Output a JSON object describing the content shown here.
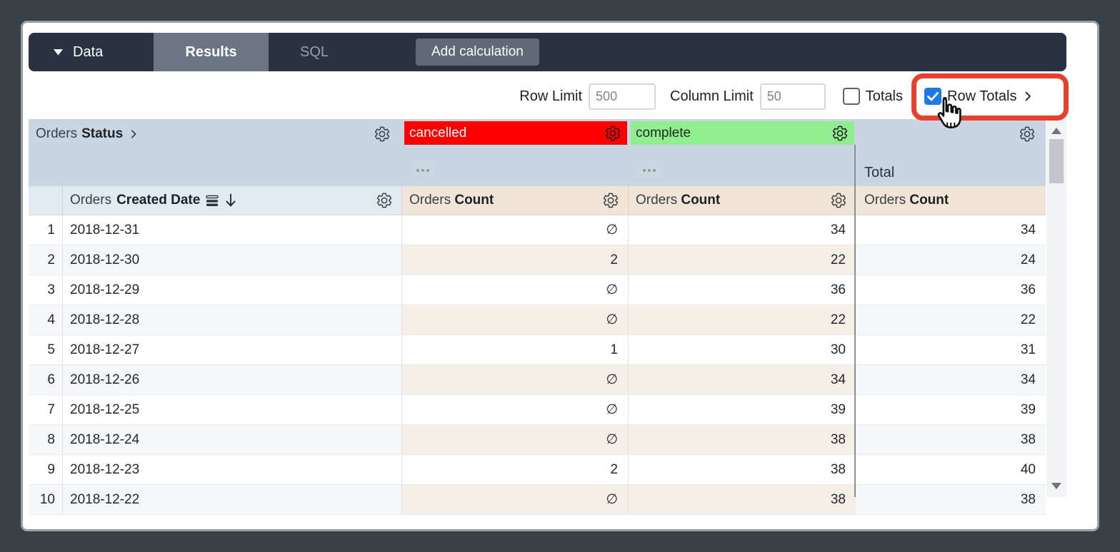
{
  "toolbar": {
    "data_label": "Data",
    "tabs": [
      {
        "label": "Results",
        "active": true
      },
      {
        "label": "SQL",
        "active": false
      }
    ],
    "add_calculation_label": "Add calculation"
  },
  "controls": {
    "row_limit_label": "Row Limit",
    "row_limit_value": "500",
    "column_limit_label": "Column Limit",
    "column_limit_value": "50",
    "totals_label": "Totals",
    "totals_checked": false,
    "row_totals_label": "Row Totals",
    "row_totals_checked": true
  },
  "table": {
    "pivot_field": {
      "view": "Orders",
      "field": "Status"
    },
    "pivot_values": [
      {
        "label": "cancelled",
        "bg": "#fe0000",
        "text_color": "#ffffff"
      },
      {
        "label": "complete",
        "bg": "#90ee90",
        "text_color": "#1c2b1c"
      }
    ],
    "total_column_label": "Total",
    "dimension_header": {
      "view": "Orders",
      "field": "Created Date"
    },
    "measure_header": {
      "view": "Orders",
      "field": "Count"
    },
    "null_symbol": "∅",
    "rows": [
      {
        "index": "1",
        "date": "2018-12-31",
        "cancelled": "∅",
        "complete": "34",
        "total": "34"
      },
      {
        "index": "2",
        "date": "2018-12-30",
        "cancelled": "2",
        "complete": "22",
        "total": "24"
      },
      {
        "index": "3",
        "date": "2018-12-29",
        "cancelled": "∅",
        "complete": "36",
        "total": "36"
      },
      {
        "index": "4",
        "date": "2018-12-28",
        "cancelled": "∅",
        "complete": "22",
        "total": "22"
      },
      {
        "index": "5",
        "date": "2018-12-27",
        "cancelled": "1",
        "complete": "30",
        "total": "31"
      },
      {
        "index": "6",
        "date": "2018-12-26",
        "cancelled": "∅",
        "complete": "34",
        "total": "34"
      },
      {
        "index": "7",
        "date": "2018-12-25",
        "cancelled": "∅",
        "complete": "39",
        "total": "39"
      },
      {
        "index": "8",
        "date": "2018-12-24",
        "cancelled": "∅",
        "complete": "38",
        "total": "38"
      },
      {
        "index": "9",
        "date": "2018-12-23",
        "cancelled": "2",
        "complete": "38",
        "total": "40"
      },
      {
        "index": "10",
        "date": "2018-12-22",
        "cancelled": "∅",
        "complete": "38",
        "total": "38"
      }
    ]
  },
  "colors": {
    "desktop_bg": "#3b4045",
    "navbar_bg": "#2a3143",
    "results_tab_bg": "#6b7484",
    "add_calc_bg": "#5e6877",
    "pivot_band_bg": "#c9d5e2",
    "dimension_header_bg": "#e1eaf3",
    "measure_header_bg": "#f1e5d8",
    "alt_row_bg": "#f5f7f9",
    "alt_measure_bg": "#f5efe8",
    "checkbox_blue": "#1f78e8",
    "annotation_red": "#e8402c"
  },
  "annotation": {
    "type": "highlight-box-with-cursor",
    "target": "Row Totals"
  }
}
